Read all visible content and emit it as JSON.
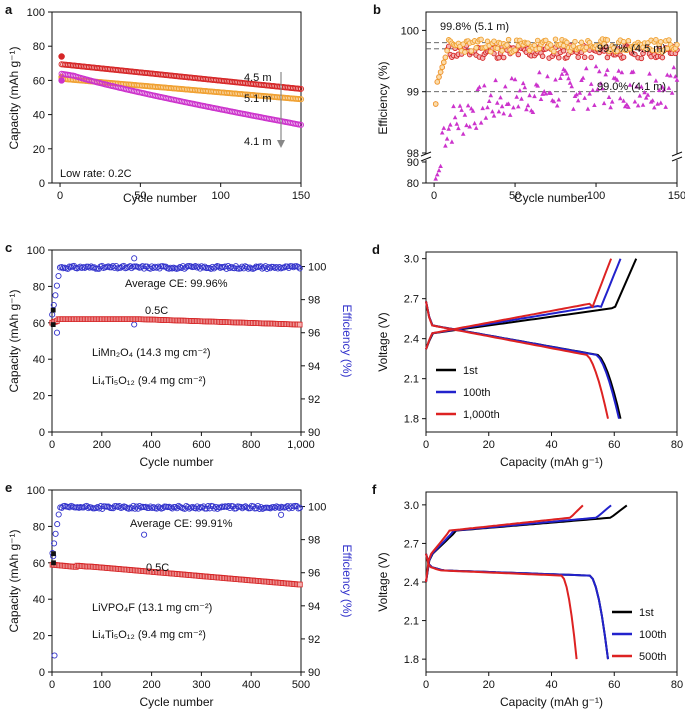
{
  "chart_data": [
    {
      "id": "a",
      "type": "scatter",
      "panel_label": "a",
      "xlabel": "Cycle number",
      "ylabel": "Capacity (mAh g⁻¹)",
      "xlim": [
        -5,
        150
      ],
      "ylim": [
        0,
        100
      ],
      "xticks": [
        0,
        50,
        100,
        150
      ],
      "yticks": [
        0,
        20,
        40,
        60,
        80,
        100
      ],
      "series": [
        {
          "name": "4.5 m",
          "color": "#d62728",
          "kind": "cap",
          "first": 74,
          "start": 69.5,
          "end": 55
        },
        {
          "name": "5.1 m",
          "color": "#f0a030",
          "kind": "cap",
          "first": 62,
          "start": 61,
          "end": 49
        },
        {
          "name": "4.1 m",
          "color": "#cc33cc",
          "kind": "capdecay",
          "first": 60,
          "start": 64,
          "end": 34
        }
      ],
      "annotations": [
        "4.5 m",
        "5.1 m",
        "4.1 m",
        "Low rate: 0.2C"
      ]
    },
    {
      "id": "b",
      "type": "scatter",
      "panel_label": "b",
      "xlabel": "Cycle number",
      "ylabel": "Efficiency (%)",
      "xlim": [
        -5,
        150
      ],
      "ytick_labels": [
        "80",
        "90",
        "98",
        "99",
        "100"
      ],
      "series": [
        {
          "name": "5.1 m",
          "color": "#f0a030",
          "avg": 99.8
        },
        {
          "name": "4.5 m",
          "color": "#d62728",
          "avg": 99.7
        },
        {
          "name": "4.1 m",
          "color": "#cc33cc",
          "avg": 99.0
        }
      ],
      "annotations": [
        "99.8% (5.1 m)",
        "99.7% (4.5 m)",
        "99.0% (4.1 m)"
      ]
    },
    {
      "id": "c",
      "type": "scatter",
      "panel_label": "c",
      "xlabel": "Cycle number",
      "ylabel": "Capacity (mAh g⁻¹)",
      "y2label": "Efficiency (%)",
      "xlim": [
        0,
        1000
      ],
      "ylim": [
        0,
        100
      ],
      "y2lim": [
        90,
        101
      ],
      "xtick_labels": [
        "0",
        "200",
        "400",
        "600",
        "800",
        "1,000"
      ],
      "ytick_labels": [
        "0",
        "20",
        "40",
        "60",
        "80",
        "100"
      ],
      "y2tick_labels": [
        "90",
        "92",
        "94",
        "96",
        "98",
        "100"
      ],
      "capacity": {
        "color": "#d62728",
        "level": 62,
        "end": 59
      },
      "efficiency": {
        "color": "#3333cc",
        "avg": 99.96
      },
      "annotations": [
        "Average CE: 99.96%",
        "0.5C",
        "LiMn₂O₄ (14.3 mg cm⁻²)",
        "Li₄Ti₅O₁₂ (9.4 mg cm⁻²)"
      ]
    },
    {
      "id": "d",
      "type": "line",
      "panel_label": "d",
      "xlabel": "Capacity (mAh g⁻¹)",
      "ylabel": "Voltage (V)",
      "xlim": [
        0,
        80
      ],
      "ylim": [
        1.7,
        3.05
      ],
      "xticks": [
        0,
        20,
        40,
        60,
        80
      ],
      "ytick_labels": [
        "1.8",
        "2.1",
        "2.4",
        "2.7",
        "3.0"
      ],
      "series": [
        {
          "name": "1st",
          "color": "#000000",
          "charge_cap": 67,
          "discharge_cap": 62
        },
        {
          "name": "100th",
          "color": "#2222cc",
          "charge_cap": 62,
          "discharge_cap": 61.5
        },
        {
          "name": "1,000th",
          "color": "#dd2222",
          "charge_cap": 59,
          "discharge_cap": 58
        }
      ]
    },
    {
      "id": "e",
      "type": "scatter",
      "panel_label": "e",
      "xlabel": "Cycle number",
      "ylabel": "Capacity (mAh g⁻¹)",
      "y2label": "Efficiency (%)",
      "xlim": [
        0,
        500
      ],
      "ylim": [
        0,
        100
      ],
      "y2lim": [
        90,
        101
      ],
      "xtick_labels": [
        "0",
        "100",
        "200",
        "300",
        "400",
        "500"
      ],
      "ytick_labels": [
        "0",
        "20",
        "40",
        "60",
        "80",
        "100"
      ],
      "y2tick_labels": [
        "90",
        "92",
        "94",
        "96",
        "98",
        "100"
      ],
      "capacity": {
        "color": "#d62728",
        "start": 59,
        "end": 48
      },
      "efficiency": {
        "color": "#3333cc",
        "avg": 99.91
      },
      "annotations": [
        "Average CE: 99.91%",
        "0.5C",
        "LiVPO₄F (13.1 mg cm⁻²)",
        "Li₄Ti₅O₁₂ (9.4 mg cm⁻²)"
      ]
    },
    {
      "id": "f",
      "type": "line",
      "panel_label": "f",
      "xlabel": "Capacity (mAh g⁻¹)",
      "ylabel": "Voltage (V)",
      "xlim": [
        0,
        80
      ],
      "ylim": [
        1.7,
        3.1
      ],
      "xticks": [
        0,
        20,
        40,
        60,
        80
      ],
      "ytick_labels": [
        "1.8",
        "2.1",
        "2.4",
        "2.7",
        "3.0"
      ],
      "series": [
        {
          "name": "1st",
          "color": "#000000",
          "charge_cap": 64,
          "discharge_cap": 58
        },
        {
          "name": "100th",
          "color": "#2222cc",
          "charge_cap": 59,
          "discharge_cap": 58
        },
        {
          "name": "500th",
          "color": "#dd2222",
          "charge_cap": 50,
          "discharge_cap": 48
        }
      ]
    }
  ]
}
